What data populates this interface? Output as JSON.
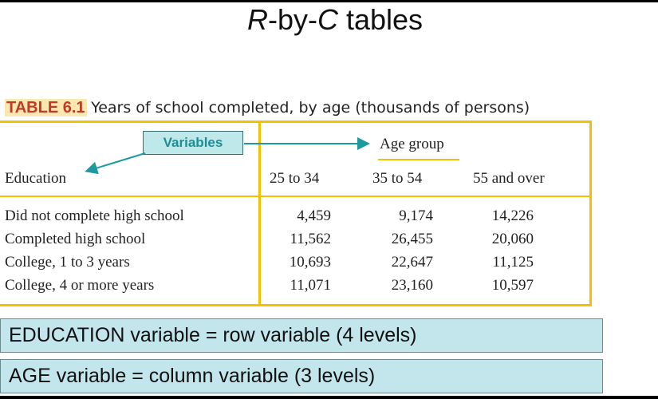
{
  "slide": {
    "title_italic_1": "R",
    "title_mid": "-by-",
    "title_italic_2": "C",
    "title_rest": " tables"
  },
  "table": {
    "number": "TABLE 6.1",
    "caption": "Years of school completed, by age (thousands of persons)",
    "variables_label": "Variables",
    "column_group_label": "Age group",
    "row_header": "Education",
    "columns": [
      "25 to 34",
      "35 to 54",
      "55 and over"
    ],
    "rows": [
      {
        "label": "Did not complete high school",
        "values": [
          "4,459",
          "9,174",
          "14,226"
        ]
      },
      {
        "label": "Completed high school",
        "values": [
          "11,562",
          "26,455",
          "20,060"
        ]
      },
      {
        "label": "College, 1 to 3 years",
        "values": [
          "10,693",
          "22,647",
          "11,125"
        ]
      },
      {
        "label": "College, 4 or more years",
        "values": [
          "11,071",
          "23,160",
          "10,597"
        ]
      }
    ]
  },
  "notes": {
    "row_variable": "EDUCATION variable = row variable (4 levels)",
    "column_variable": "AGE variable = column variable (3 levels)"
  },
  "colors": {
    "rule": "#f2c200",
    "arrow": "#1c9aa0",
    "note_bg": "#c3e6ec"
  }
}
